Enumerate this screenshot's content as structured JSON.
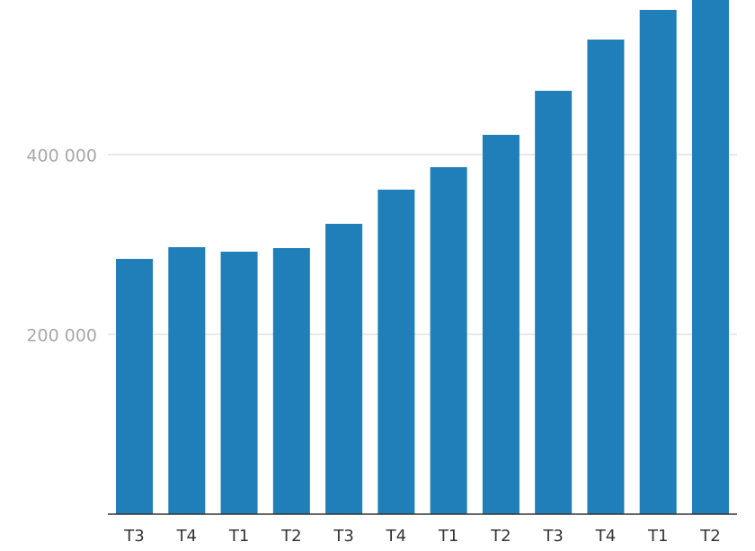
{
  "chart_data": {
    "type": "bar",
    "categories": [
      "T3",
      "T4",
      "T1",
      "T2",
      "T3",
      "T4",
      "T1",
      "T2",
      "T3",
      "T4",
      "T1",
      "T2"
    ],
    "values": [
      284000,
      297000,
      292000,
      296000,
      323000,
      361000,
      386000,
      422000,
      471000,
      528000,
      561000,
      572000
    ],
    "color": "#207eb8",
    "ylim": [
      0,
      572000
    ],
    "yticks": [
      {
        "value": 200000,
        "label": "200 000"
      },
      {
        "value": 400000,
        "label": "400 000"
      }
    ],
    "grid": true
  }
}
